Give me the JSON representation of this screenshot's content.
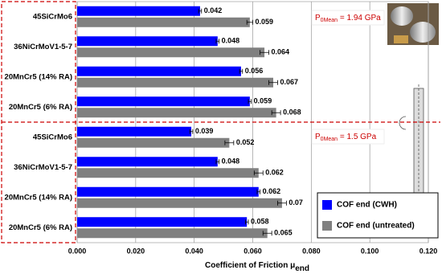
{
  "chart_data": {
    "type": "hbar",
    "categories": [
      "45SiCrMo6",
      "36NiCrMoV1-5-7",
      "20MnCr5 (14% RA)",
      "20MnCr5 (6% RA)",
      "45SiCrMo6",
      "36NiCrMoV1-5-7",
      "20MnCr5 (14% RA)",
      "20MnCr5 (6% RA)"
    ],
    "series": [
      {
        "name": "COF end (CWH)",
        "color": "#0000ff",
        "values": [
          0.042,
          0.048,
          0.056,
          0.059,
          0.039,
          0.048,
          0.062,
          0.058
        ],
        "errors": [
          0.0005,
          0.0005,
          0.0005,
          0.0005,
          0.0005,
          0.0005,
          0.0005,
          0.0005
        ]
      },
      {
        "name": "COF end (untreated)",
        "color": "#808080",
        "values": [
          0.059,
          0.064,
          0.067,
          0.068,
          0.052,
          0.062,
          0.07,
          0.065
        ],
        "errors": [
          0.001,
          0.0015,
          0.0015,
          0.0015,
          0.0015,
          0.0015,
          0.0015,
          0.0015
        ]
      }
    ],
    "xlim": [
      0,
      0.12
    ],
    "xticks": [
      {
        "value": 0,
        "label": "0.000"
      },
      {
        "value": 0.02,
        "label": "0.020"
      },
      {
        "value": 0.04,
        "label": "0.040"
      },
      {
        "value": 0.06,
        "label": "0.060"
      },
      {
        "value": 0.08,
        "label": "0.080"
      },
      {
        "value": 0.1,
        "label": "0.100"
      },
      {
        "value": 0.12,
        "label": "0.120"
      }
    ],
    "x_label": "Coefficient of Friction μ",
    "x_label_sub": "end",
    "annotations": [
      {
        "text": "P",
        "sub": "0Mean",
        "rest": " = 1.94 GPa"
      },
      {
        "text": "P",
        "sub": "0Mean",
        "rest": " = 1.5 GPa"
      }
    ],
    "grid": true,
    "legend": "lower right"
  }
}
